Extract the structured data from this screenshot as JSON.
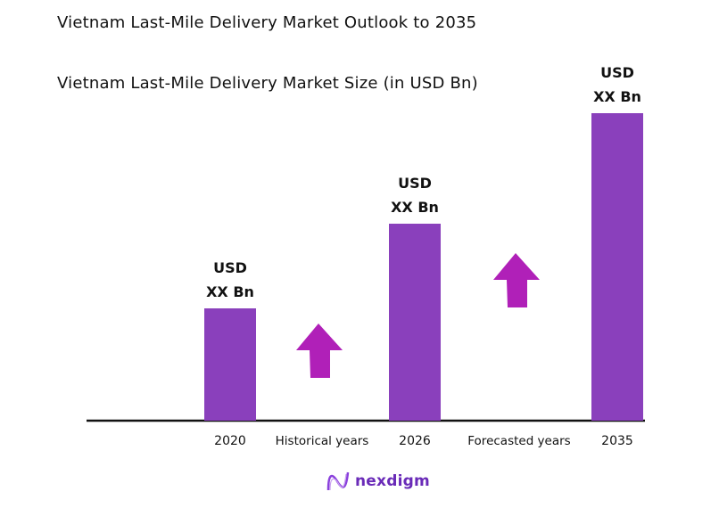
{
  "chart_data": {
    "type": "bar",
    "title": "Vietnam Last-Mile Delivery Market Outlook to 2035",
    "subtitle": "Vietnam Last-Mile Delivery Market Size (in USD Bn)",
    "categories": [
      "2020",
      "2026",
      "2035"
    ],
    "data_labels": [
      {
        "line1": "USD",
        "line2": "XX Bn"
      },
      {
        "line1": "USD",
        "line2": "XX Bn"
      },
      {
        "line1": "USD",
        "line2": "XX Bn"
      }
    ],
    "period_labels": [
      "Historical years",
      "Forecasted years"
    ],
    "grid": false,
    "colors": {
      "bar": "#8a40bc",
      "arrow": "#b020b8",
      "axis": "#111111"
    },
    "annotations": [
      "up-arrow between 2020 and 2026",
      "up-arrow between 2026 and 2035"
    ]
  },
  "brand": {
    "name": "nexdigm",
    "color": "#6a2bb8"
  }
}
